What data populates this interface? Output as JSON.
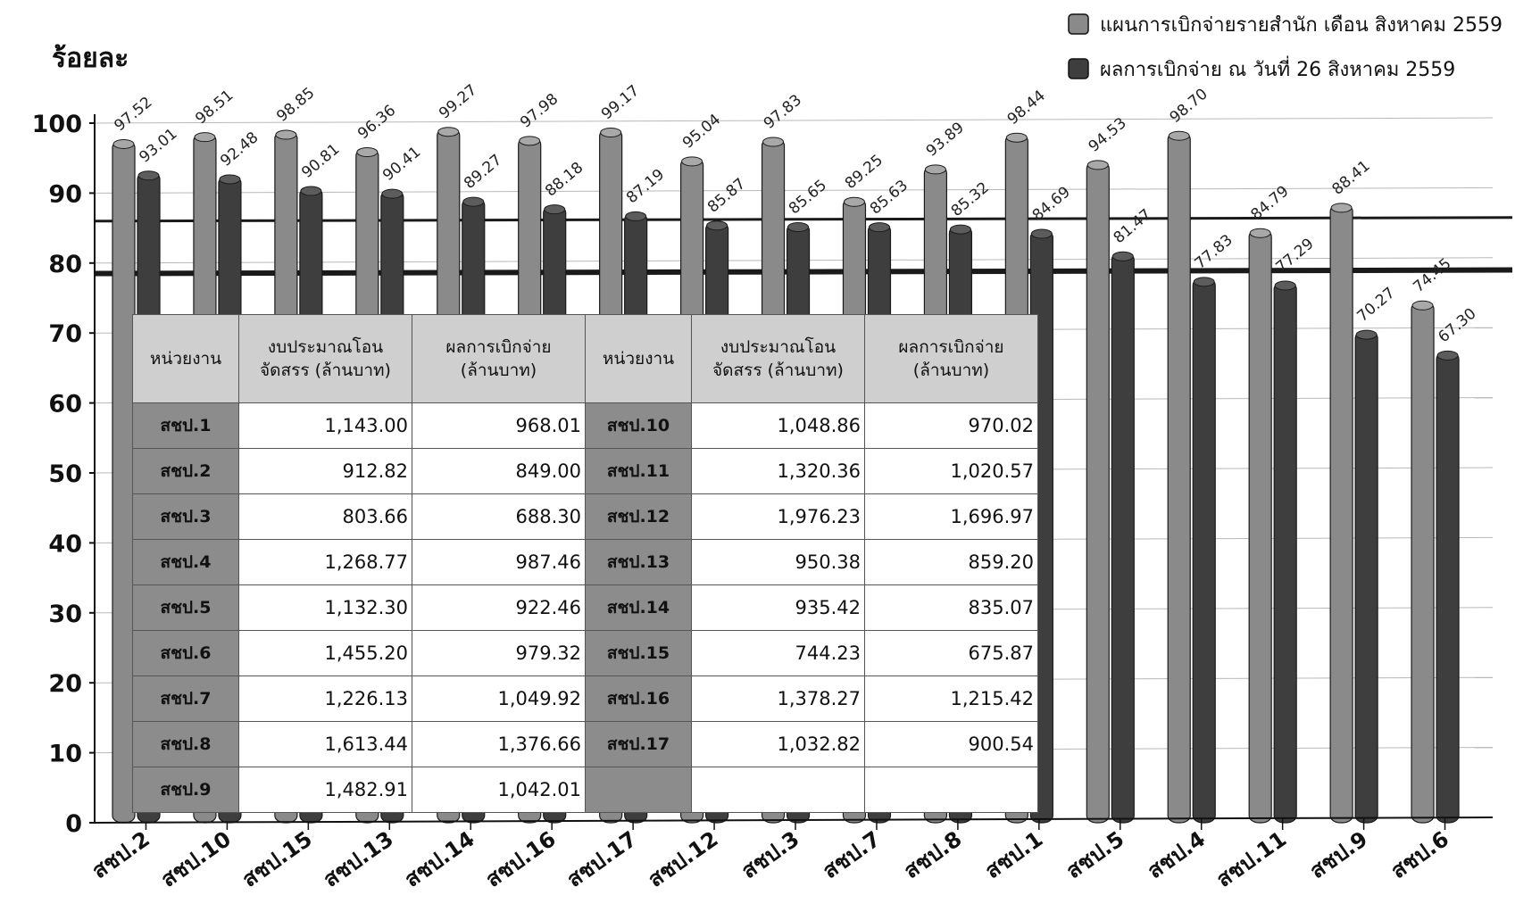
{
  "chart_data": {
    "type": "bar",
    "ylabel": "ร้อยละ",
    "ylim": [
      0,
      100
    ],
    "yticks": [
      0,
      10,
      20,
      30,
      40,
      50,
      60,
      70,
      80,
      90,
      100
    ],
    "categories": [
      "สชป.2",
      "สชป.10",
      "สชป.15",
      "สชป.13",
      "สชป.14",
      "สชป.16",
      "สชป.17",
      "สชป.12",
      "สชป.3",
      "สชป.7",
      "สชป.8",
      "สชป.1",
      "สชป.5",
      "สชป.4",
      "สชป.11",
      "สชป.9",
      "สชป.6"
    ],
    "series": [
      {
        "name": "แผนการเบิกจ่ายรายสำนัก เดือน สิงหาคม 2559",
        "color": "#8a8a8a",
        "values": [
          97.52,
          98.51,
          98.85,
          96.36,
          99.27,
          97.98,
          99.17,
          95.04,
          97.83,
          89.25,
          93.89,
          98.44,
          94.53,
          98.7,
          84.79,
          88.41,
          74.45
        ],
        "labels": [
          "97.52",
          "98.51",
          "98.85",
          "96.36",
          "99.27",
          "97.98",
          "99.17",
          "95.04",
          "97.83",
          "89.25",
          "93.89",
          "98.44",
          "94.53",
          "98.70",
          "84.79",
          "88.41",
          "74.45"
        ]
      },
      {
        "name": "ผลการเบิกจ่าย ณ วันที่ 26 สิงหาคม 2559",
        "color": "#3e3e3e",
        "values": [
          93.01,
          92.48,
          90.81,
          90.41,
          89.27,
          88.18,
          87.19,
          85.87,
          85.65,
          85.63,
          85.32,
          84.69,
          81.47,
          77.83,
          77.29,
          70.27,
          67.3
        ],
        "labels": [
          "93.01",
          "92.48",
          "90.81",
          "90.41",
          "89.27",
          "88.18",
          "87.19",
          "85.87",
          "85.65",
          "85.63",
          "85.32",
          "84.69",
          "81.47",
          "77.83",
          "77.29",
          "70.27",
          "67.30"
        ]
      }
    ],
    "reference_lines": [
      86,
      78.5
    ],
    "legend": "top-right",
    "table": {
      "headers": [
        "หน่วยงาน",
        "งบประมาณโอน\nจัดสรร (ล้านบาท)",
        "ผลการเบิกจ่าย\n(ล้านบาท)",
        "หน่วยงาน",
        "งบประมาณโอน\nจัดสรร (ล้านบาท)",
        "ผลการเบิกจ่าย\n(ล้านบาท)"
      ],
      "rows": [
        [
          "สชป.1",
          "1,143.00",
          "968.01",
          "สชป.10",
          "1,048.86",
          "970.02"
        ],
        [
          "สชป.2",
          "912.82",
          "849.00",
          "สชป.11",
          "1,320.36",
          "1,020.57"
        ],
        [
          "สชป.3",
          "803.66",
          "688.30",
          "สชป.12",
          "1,976.23",
          "1,696.97"
        ],
        [
          "สชป.4",
          "1,268.77",
          "987.46",
          "สชป.13",
          "950.38",
          "859.20"
        ],
        [
          "สชป.5",
          "1,132.30",
          "922.46",
          "สชป.14",
          "935.42",
          "835.07"
        ],
        [
          "สชป.6",
          "1,455.20",
          "979.32",
          "สชป.15",
          "744.23",
          "675.87"
        ],
        [
          "สชป.7",
          "1,226.13",
          "1,049.92",
          "สชป.16",
          "1,378.27",
          "1,215.42"
        ],
        [
          "สชป.8",
          "1,613.44",
          "1,376.66",
          "สชป.17",
          "1,032.82",
          "900.54"
        ],
        [
          "สชป.9",
          "1,482.91",
          "1,042.01",
          "",
          "",
          ""
        ]
      ]
    }
  }
}
